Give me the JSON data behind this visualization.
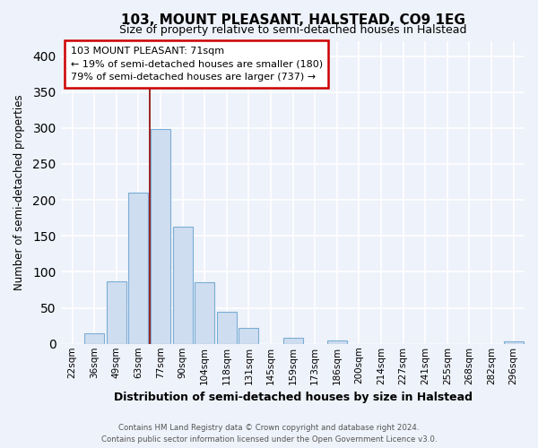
{
  "title": "103, MOUNT PLEASANT, HALSTEAD, CO9 1EG",
  "subtitle": "Size of property relative to semi-detached houses in Halstead",
  "xlabel": "Distribution of semi-detached houses by size in Halstead",
  "ylabel": "Number of semi-detached properties",
  "bar_labels": [
    "22sqm",
    "36sqm",
    "49sqm",
    "63sqm",
    "77sqm",
    "90sqm",
    "104sqm",
    "118sqm",
    "131sqm",
    "145sqm",
    "159sqm",
    "173sqm",
    "186sqm",
    "200sqm",
    "214sqm",
    "227sqm",
    "241sqm",
    "255sqm",
    "268sqm",
    "282sqm",
    "296sqm"
  ],
  "bar_values": [
    0,
    15,
    87,
    210,
    298,
    163,
    85,
    45,
    22,
    0,
    9,
    0,
    5,
    0,
    0,
    0,
    0,
    0,
    0,
    0,
    3
  ],
  "bar_color": "#cfddf0",
  "bar_edge_color": "#7aadd4",
  "property_label": "103 MOUNT PLEASANT: 71sqm",
  "pct_smaller": 19,
  "count_smaller": 180,
  "pct_larger": 79,
  "count_larger": 737,
  "ylim": [
    0,
    420
  ],
  "yticks": [
    0,
    50,
    100,
    150,
    200,
    250,
    300,
    350,
    400
  ],
  "footer_line1": "Contains HM Land Registry data © Crown copyright and database right 2024.",
  "footer_line2": "Contains public sector information licensed under the Open Government Licence v3.0.",
  "bg_color": "#eef2fa",
  "grid_color": "#ffffff",
  "vline_x": 3.5,
  "vline_color": "#8b0000",
  "ann_box_color": "#cc0000"
}
